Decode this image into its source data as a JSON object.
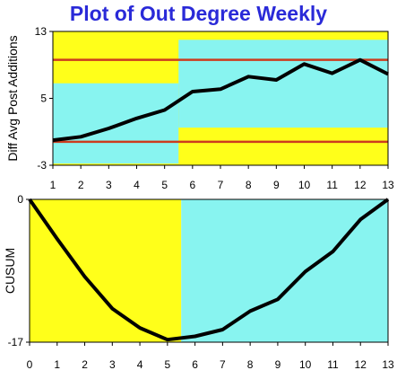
{
  "title": "Plot of Out Degree Weekly",
  "colors": {
    "title": "#2a2ad8",
    "yellow": "#ffff1a",
    "cyan": "#88f4f0",
    "limit": "#cc3d1f",
    "line": "#000000"
  },
  "chart_data": [
    {
      "type": "line",
      "ylabel": "Diff Avg Post Additions",
      "xlabel": "",
      "x": [
        1,
        2,
        3,
        4,
        5,
        6,
        7,
        8,
        9,
        10,
        11,
        12,
        13
      ],
      "xlim": [
        1,
        13
      ],
      "ylim": [
        -3,
        13
      ],
      "yticks": [
        13,
        5,
        -3
      ],
      "xticks": [
        1,
        2,
        3,
        4,
        5,
        6,
        7,
        8,
        9,
        10,
        11,
        12,
        13
      ],
      "series": [
        {
          "values": [
            0.0,
            0.4,
            1.4,
            2.6,
            3.6,
            5.8,
            6.1,
            7.6,
            7.2,
            9.1,
            8.0,
            9.6,
            7.9
          ]
        }
      ],
      "control_limits": [
        9.6,
        -0.2
      ],
      "background_regions": [
        {
          "x_from": 1,
          "x_to": 5.5,
          "yellow_above": 6.8,
          "cyan_between": [
            -2.8,
            6.8
          ]
        },
        {
          "x_from": 5.5,
          "x_to": 13,
          "cyan_between": [
            1.5,
            12.0
          ]
        }
      ]
    },
    {
      "type": "line",
      "ylabel": "CUSUM",
      "xlabel": "",
      "x": [
        0,
        1,
        2,
        3,
        4,
        5,
        6,
        7,
        8,
        9,
        10,
        11,
        12,
        13
      ],
      "xlim": [
        0,
        13
      ],
      "ylim": [
        -17,
        0
      ],
      "yticks": [
        0,
        -17
      ],
      "xticks": [
        0,
        1,
        2,
        3,
        4,
        5,
        6,
        7,
        8,
        9,
        10,
        11,
        12,
        13
      ],
      "series": [
        {
          "values": [
            0,
            -4.7,
            -9.2,
            -13.0,
            -15.3,
            -16.7,
            -16.3,
            -15.5,
            -13.3,
            -11.9,
            -8.6,
            -6.2,
            -2.4,
            0
          ]
        }
      ],
      "background_regions": [
        {
          "x_from": 0,
          "x_to": 5.5,
          "color": "yellow"
        },
        {
          "x_from": 5.5,
          "x_to": 13,
          "color": "cyan"
        }
      ]
    }
  ]
}
